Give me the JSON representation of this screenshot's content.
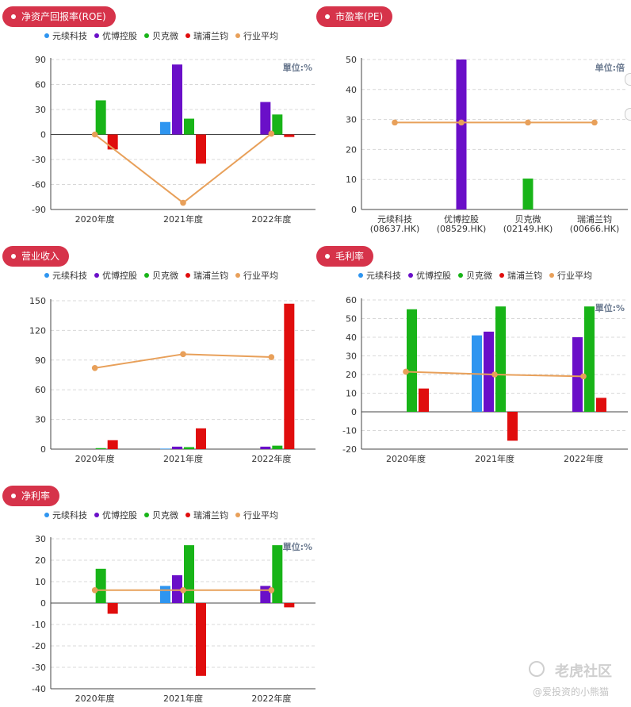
{
  "legend": [
    {
      "label": "元续科技",
      "color": "#2e95f0"
    },
    {
      "label": "优博控股",
      "color": "#6a0fc8"
    },
    {
      "label": "贝克微",
      "color": "#18b418"
    },
    {
      "label": "瑞浦兰钧",
      "color": "#e00d0d"
    },
    {
      "label": "行业平均",
      "color": "#e8a05a"
    }
  ],
  "watermark": {
    "brand": "老虎社区",
    "user": "@爱投资的小熊猫"
  },
  "chart_data": [
    {
      "id": "roe",
      "type": "bar",
      "title": "净资产回报率(ROE)",
      "unit_label": "單位:%",
      "categories": [
        "2020年度",
        "2021年度",
        "2022年度"
      ],
      "ylim": [
        -90,
        90
      ],
      "yticks": [
        -90,
        -60,
        -30,
        0,
        30,
        60,
        90
      ],
      "series": [
        {
          "name": "元续科技",
          "values": [
            null,
            15,
            null
          ]
        },
        {
          "name": "优博控股",
          "values": [
            null,
            84,
            39
          ]
        },
        {
          "name": "贝克微",
          "values": [
            41,
            19,
            24
          ]
        },
        {
          "name": "瑞浦兰钧",
          "values": [
            -18,
            -35,
            -3
          ]
        }
      ],
      "average": {
        "name": "行业平均",
        "values": [
          0,
          -82,
          1
        ]
      },
      "grid": true
    },
    {
      "id": "pe",
      "type": "bar",
      "title": "市盈率(PE)",
      "unit_label": "单位:倍",
      "categories": [
        "元续科技\n(08637.HK)",
        "优博控股\n(08529.HK)",
        "贝克微\n(02149.HK)",
        "瑞浦兰钧\n(00666.HK)"
      ],
      "ylim": [
        0,
        50
      ],
      "yticks": [
        0,
        10,
        20,
        30,
        40,
        50
      ],
      "bars": [
        null,
        50,
        10.3,
        null
      ],
      "bar_colors": [
        "#2e95f0",
        "#6a0fc8",
        "#18b418",
        "#e00d0d"
      ],
      "average": {
        "name": "行业平均",
        "values": [
          29,
          29,
          29,
          29
        ]
      },
      "grid": true
    },
    {
      "id": "revenue",
      "type": "bar",
      "title": "营业收入",
      "unit_label": "",
      "categories": [
        "2020年度",
        "2021年度",
        "2022年度"
      ],
      "ylim": [
        0,
        150
      ],
      "yticks": [
        0,
        30,
        60,
        90,
        120,
        150
      ],
      "series": [
        {
          "name": "元续科技",
          "values": [
            null,
            0.5,
            null
          ]
        },
        {
          "name": "优博控股",
          "values": [
            null,
            2.5,
            2.5
          ]
        },
        {
          "name": "贝克微",
          "values": [
            1,
            2,
            3.5
          ]
        },
        {
          "name": "瑞浦兰钧",
          "values": [
            9,
            21,
            147
          ]
        }
      ],
      "average": {
        "name": "行业平均",
        "values": [
          82,
          96,
          93
        ]
      },
      "grid": true
    },
    {
      "id": "gross",
      "type": "bar",
      "title": "毛利率",
      "unit_label": "單位:%",
      "categories": [
        "2020年度",
        "2021年度",
        "2022年度"
      ],
      "ylim": [
        -20,
        60
      ],
      "yticks": [
        -20,
        -10,
        0,
        10,
        20,
        30,
        40,
        50,
        60
      ],
      "series": [
        {
          "name": "元续科技",
          "values": [
            null,
            41,
            null
          ]
        },
        {
          "name": "优博控股",
          "values": [
            null,
            43,
            40
          ]
        },
        {
          "name": "贝克微",
          "values": [
            55,
            56.5,
            56.5
          ]
        },
        {
          "name": "瑞浦兰钧",
          "values": [
            12.5,
            -15.5,
            7.5
          ]
        }
      ],
      "average": {
        "name": "行业平均",
        "values": [
          21.5,
          20,
          19
        ]
      },
      "grid": true
    },
    {
      "id": "net",
      "type": "bar",
      "title": "净利率",
      "unit_label": "單位:%",
      "categories": [
        "2020年度",
        "2021年度",
        "2022年度"
      ],
      "ylim": [
        -40,
        30
      ],
      "yticks": [
        -40,
        -30,
        -20,
        -10,
        0,
        10,
        20,
        30
      ],
      "series": [
        {
          "name": "元续科技",
          "values": [
            null,
            8,
            null
          ]
        },
        {
          "name": "优博控股",
          "values": [
            null,
            13,
            8
          ]
        },
        {
          "name": "贝克微",
          "values": [
            16,
            27,
            27
          ]
        },
        {
          "name": "瑞浦兰钧",
          "values": [
            -5,
            -34,
            -2
          ]
        }
      ],
      "average": {
        "name": "行业平均",
        "values": [
          6,
          6,
          6
        ]
      },
      "grid": true
    }
  ]
}
